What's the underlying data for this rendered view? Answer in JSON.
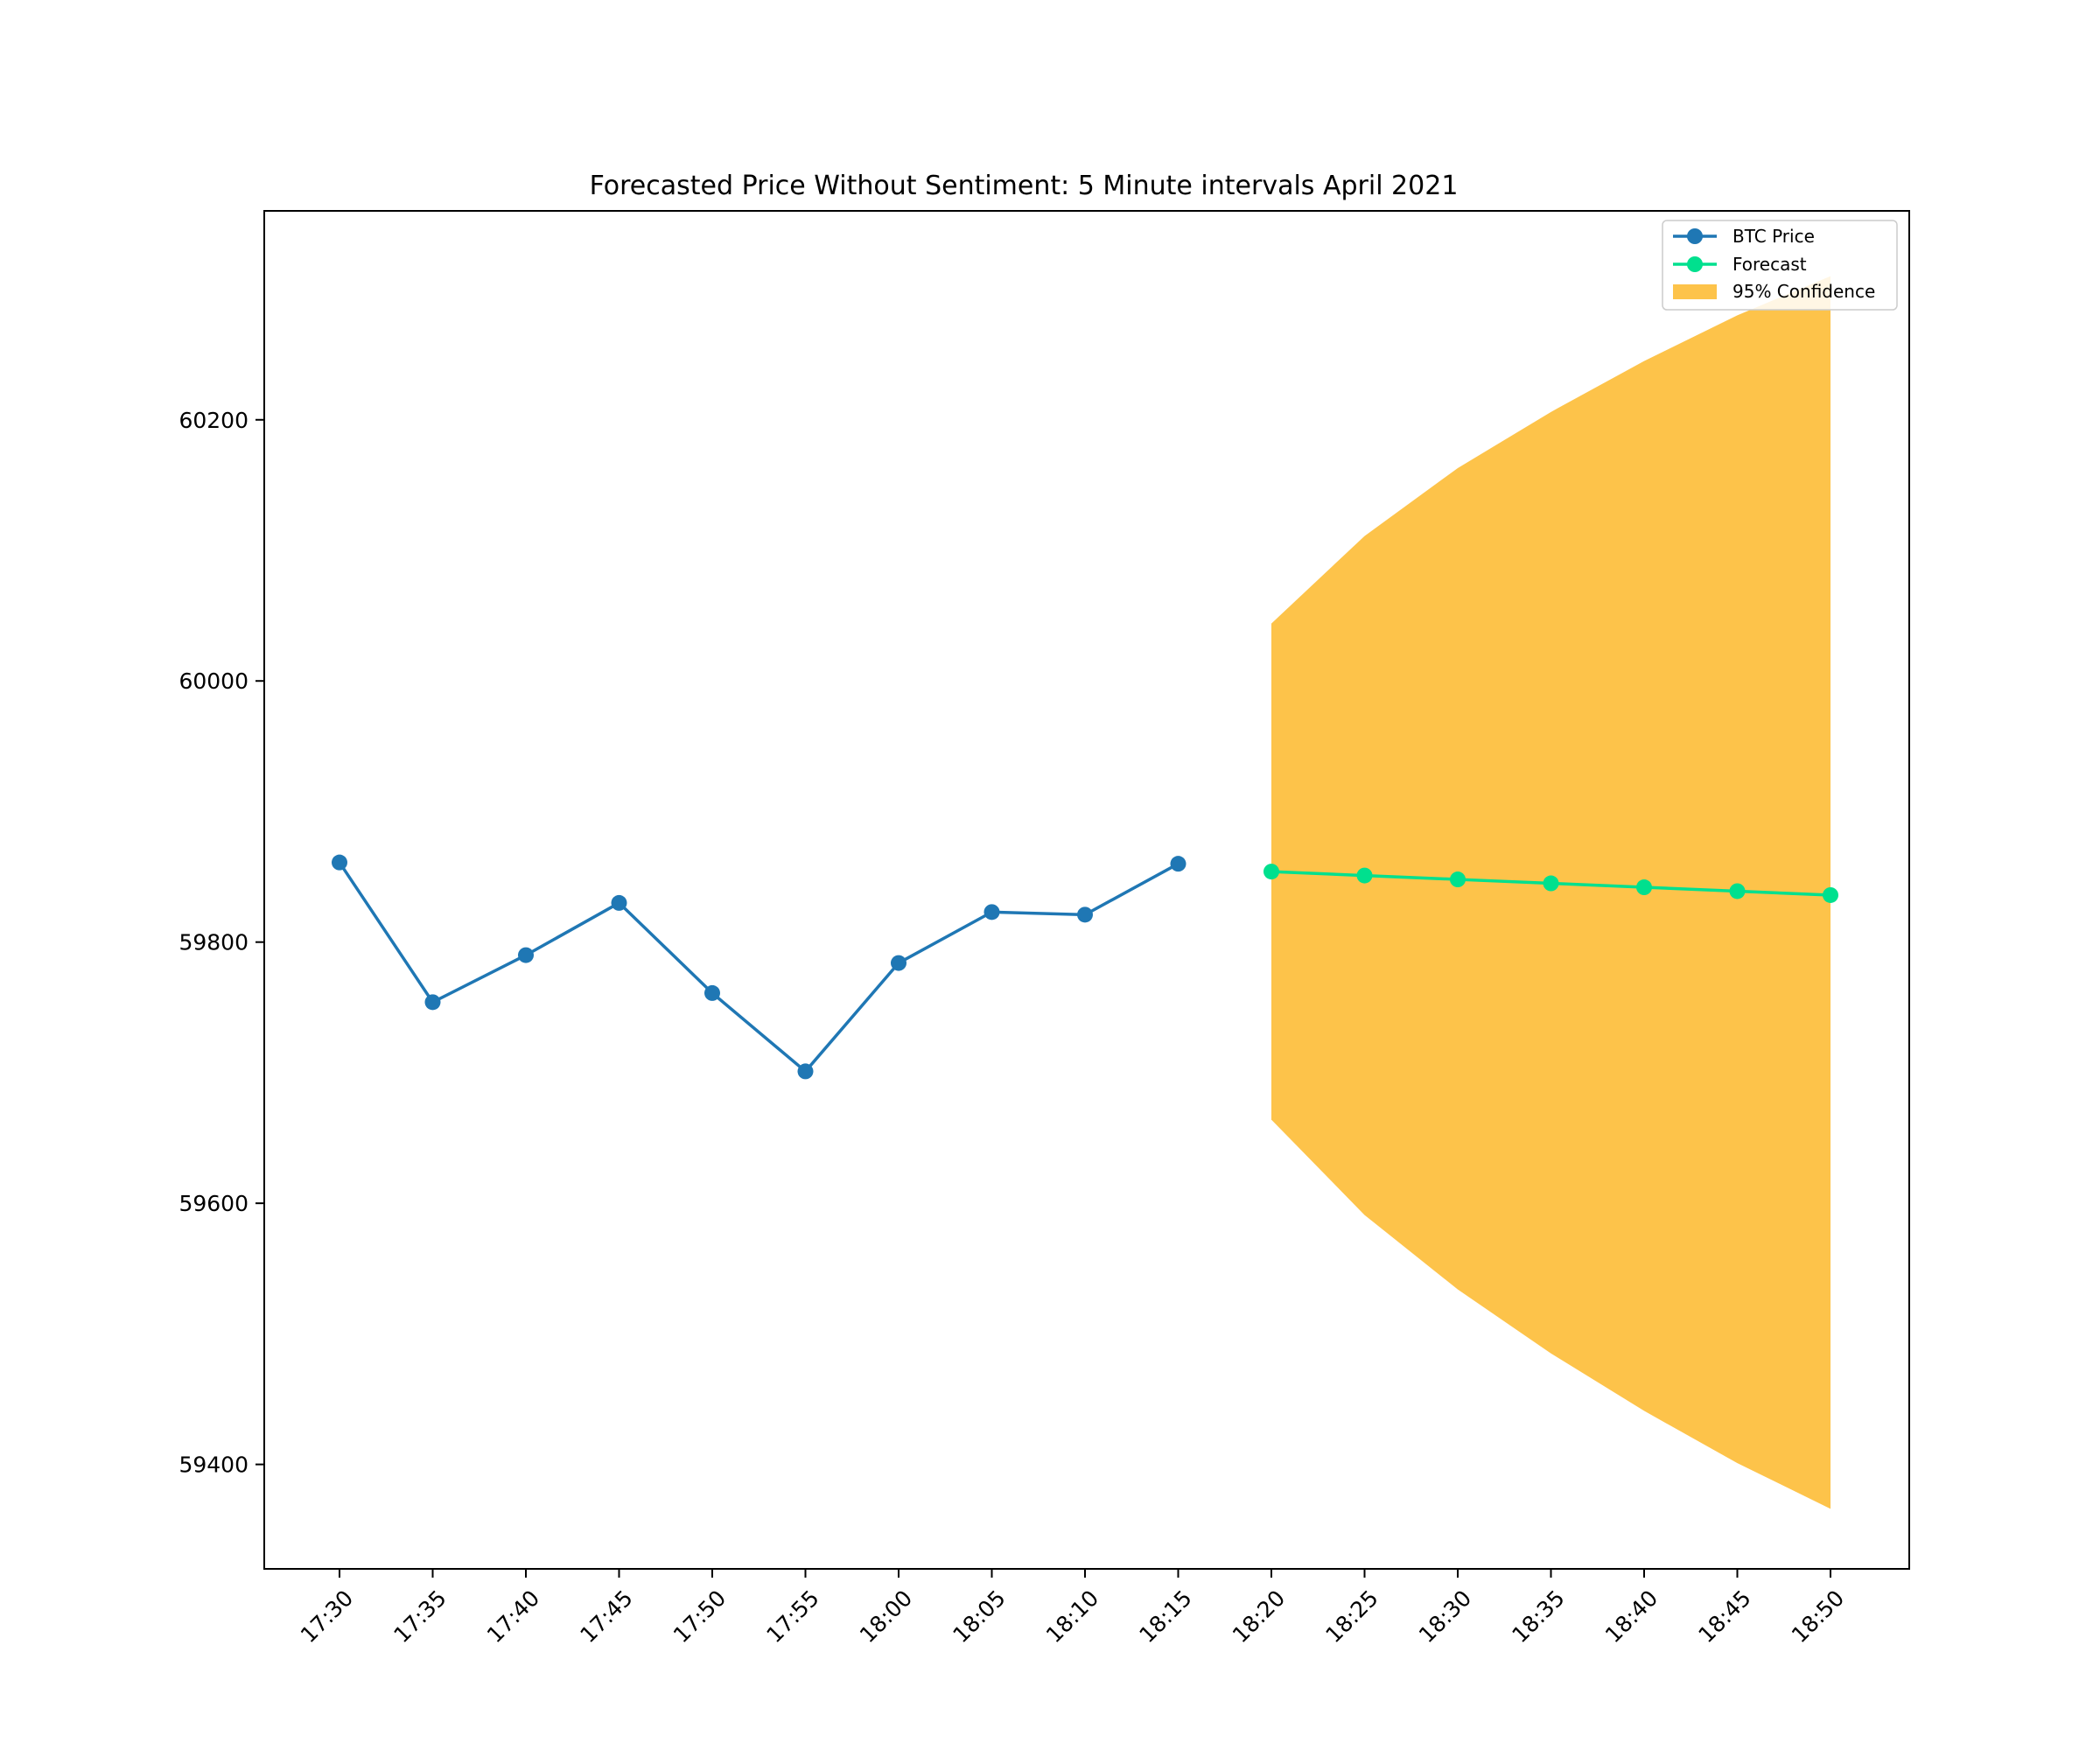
{
  "chart_data": {
    "type": "line",
    "title": "Forecasted Price Without Sentiment: 5 Minute intervals April 2021",
    "xlabel": "",
    "ylabel": "",
    "categories": [
      "17:30",
      "17:35",
      "17:40",
      "17:45",
      "17:50",
      "17:55",
      "18:00",
      "18:05",
      "18:10",
      "18:15",
      "18:20",
      "18:25",
      "18:30",
      "18:35",
      "18:40",
      "18:45",
      "18:50"
    ],
    "ylim": [
      59320,
      60360
    ],
    "yticks": [
      59400,
      59600,
      59800,
      60000,
      60200
    ],
    "ytick_labels": [
      "59400",
      "59600",
      "59800",
      "60000",
      "60200"
    ],
    "grid": false,
    "legend_position": "top-right",
    "series": [
      {
        "name": "BTC Price",
        "color": "#1f77b4",
        "marker": "circle",
        "x": [
          "17:30",
          "17:35",
          "17:40",
          "17:45",
          "17:50",
          "17:55",
          "18:00",
          "18:05",
          "18:10",
          "18:15"
        ],
        "values": [
          59861,
          59754,
          59790,
          59830,
          59761,
          59701,
          59784,
          59823,
          59821,
          59860
        ]
      },
      {
        "name": "Forecast",
        "color": "#00e08e",
        "marker": "circle",
        "x": [
          "18:20",
          "18:25",
          "18:30",
          "18:35",
          "18:40",
          "18:45",
          "18:50"
        ],
        "values": [
          59854,
          59851,
          59848,
          59845,
          59842,
          59839,
          59836
        ]
      }
    ],
    "confidence_band": {
      "name": "95% Confidence",
      "color": "#fdb92a",
      "x": [
        "18:20",
        "18:25",
        "18:30",
        "18:35",
        "18:40",
        "18:45",
        "18:50"
      ],
      "lower": [
        59664,
        59591,
        59534,
        59485,
        59441,
        59401,
        59366
      ],
      "upper": [
        60044,
        60111,
        60163,
        60206,
        60245,
        60280,
        60310
      ]
    }
  }
}
